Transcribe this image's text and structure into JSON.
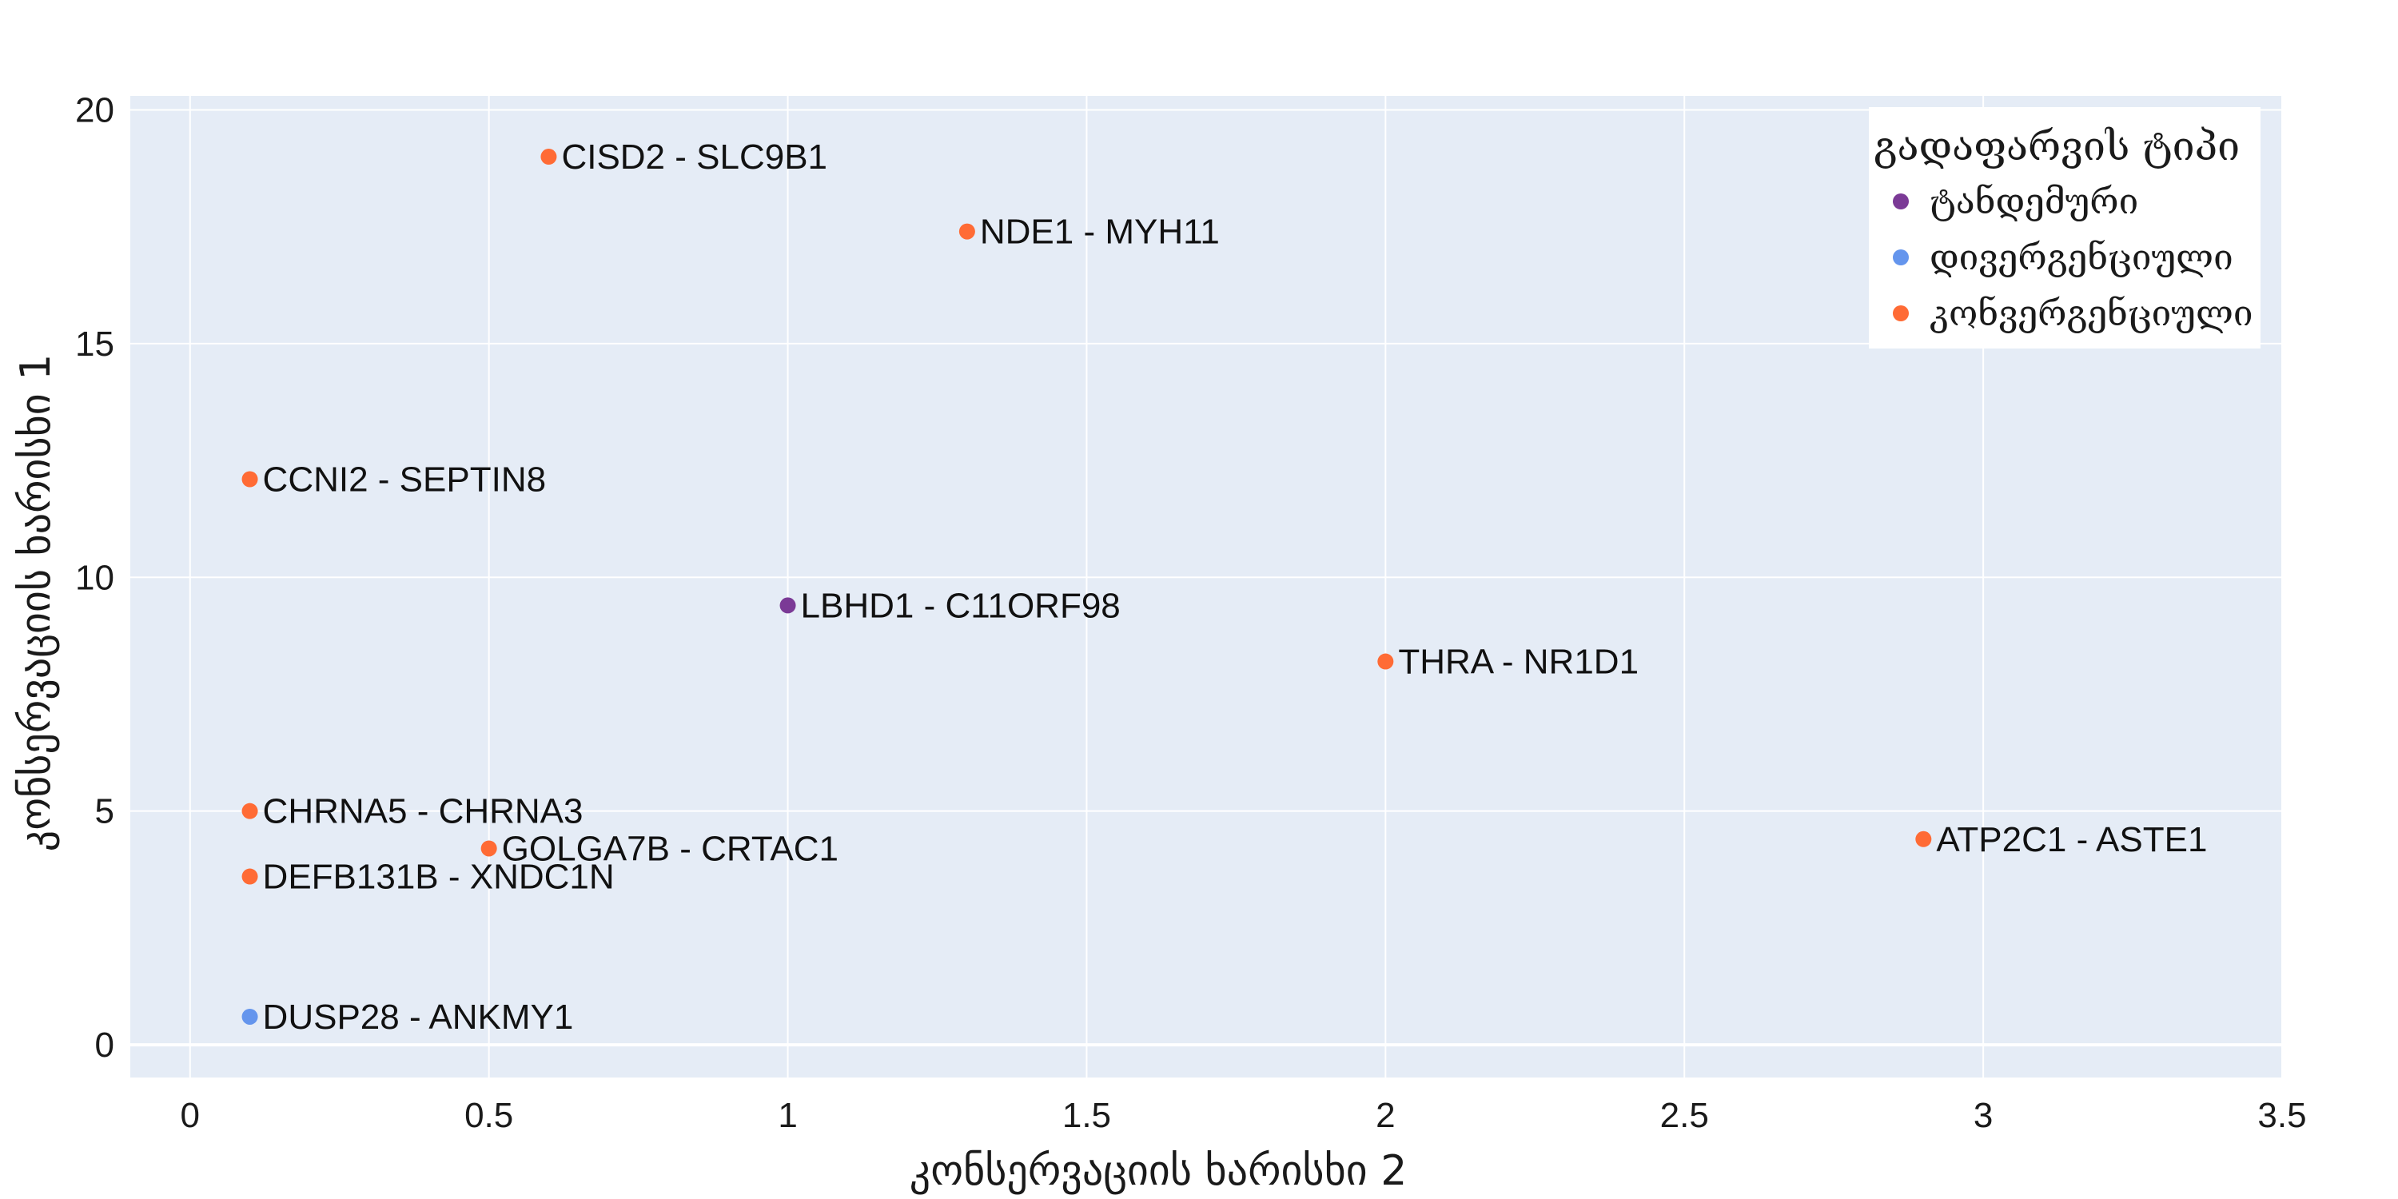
{
  "chart_data": {
    "type": "scatter",
    "title": "",
    "xlabel": "კონსერვაციის ხარისხი 2",
    "ylabel": "კონსერვაციის ხარისხი 1",
    "xlim": [
      -0.1,
      3.5
    ],
    "ylim": [
      -0.7,
      20.3
    ],
    "xticks": [
      0,
      0.5,
      1,
      1.5,
      2,
      2.5,
      3,
      3.5
    ],
    "xtick_labels": [
      "0",
      "0.5",
      "1",
      "1.5",
      "2",
      "2.5",
      "3",
      "3.5"
    ],
    "yticks": [
      0,
      5,
      10,
      15,
      20
    ],
    "ytick_labels": [
      "0",
      "5",
      "10",
      "15",
      "20"
    ],
    "grid": true,
    "legend": {
      "title": "გადაფარვის ტიპი",
      "position": "top-right",
      "entries": [
        {
          "name": "ტანდემური",
          "color": "#7b3a96"
        },
        {
          "name": "დივერგენციული",
          "color": "#6495ed"
        },
        {
          "name": "კონვერგენციული",
          "color": "#ff6b35"
        }
      ]
    },
    "series": [
      {
        "name": "ტანდემური",
        "color": "#7b3a96",
        "points": [
          {
            "x": 1.0,
            "y": 9.4,
            "label": "LBHD1 - C11ORF98"
          }
        ]
      },
      {
        "name": "დივერგენციული",
        "color": "#6495ed",
        "points": [
          {
            "x": 0.1,
            "y": 0.6,
            "label": "DUSP28 - ANKMY1"
          }
        ]
      },
      {
        "name": "კონვერგენციული",
        "color": "#ff6b35",
        "points": [
          {
            "x": 0.6,
            "y": 19.0,
            "label": "CISD2 - SLC9B1"
          },
          {
            "x": 1.3,
            "y": 17.4,
            "label": "NDE1 - MYH11"
          },
          {
            "x": 0.1,
            "y": 12.1,
            "label": "CCNI2 - SEPTIN8"
          },
          {
            "x": 2.0,
            "y": 8.2,
            "label": "THRA - NR1D1"
          },
          {
            "x": 0.1,
            "y": 5.0,
            "label": "CHRNA5 - CHRNA3"
          },
          {
            "x": 0.5,
            "y": 4.2,
            "label": "GOLGA7B - CRTAC1"
          },
          {
            "x": 2.9,
            "y": 4.4,
            "label": "ATP2C1 - ASTE1"
          },
          {
            "x": 0.1,
            "y": 3.6,
            "label": "DEFB131B - XNDC1N"
          }
        ]
      }
    ],
    "colors": {
      "plot_background": "#e5ecf6",
      "grid": "#ffffff"
    }
  }
}
